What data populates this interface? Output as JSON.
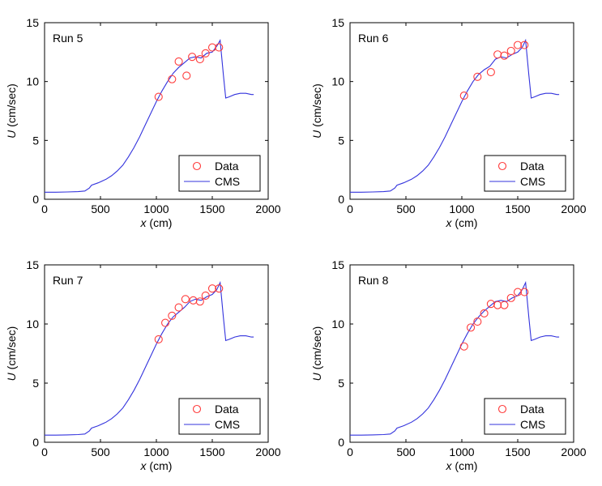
{
  "chart_data": {
    "type": "scatter",
    "xlabel": "x (cm)",
    "xlabel_var": "x",
    "xlabel_unit": "(cm)",
    "ylabel": "U (cm/sec)",
    "ylabel_var": "U",
    "ylabel_unit": "(cm/sec)",
    "xlim": [
      0,
      2000
    ],
    "ylim": [
      0,
      15
    ],
    "xticks": [
      0,
      500,
      1000,
      1500,
      2000
    ],
    "yticks": [
      0,
      5,
      10,
      15
    ],
    "legend": {
      "position": "bottom-right",
      "entries": [
        "Data",
        "CMS"
      ]
    },
    "panels": [
      {
        "title": "Run 5",
        "data": {
          "x": [
            1020,
            1140,
            1200,
            1270,
            1320,
            1390,
            1440,
            1500,
            1560
          ],
          "y": [
            8.7,
            10.2,
            11.7,
            10.5,
            12.1,
            11.9,
            12.4,
            12.9,
            12.9
          ]
        },
        "cms": {
          "x": [
            0,
            100,
            200,
            300,
            360,
            400,
            420,
            480,
            550,
            600,
            650,
            700,
            750,
            800,
            850,
            900,
            950,
            1000,
            1050,
            1100,
            1150,
            1200,
            1250,
            1300,
            1350,
            1400,
            1450,
            1500,
            1540,
            1570,
            1600,
            1620,
            1650,
            1700,
            1750,
            1800,
            1850,
            1870
          ],
          "y": [
            0.6,
            0.6,
            0.62,
            0.65,
            0.7,
            0.95,
            1.2,
            1.4,
            1.7,
            2.0,
            2.4,
            2.9,
            3.6,
            4.4,
            5.3,
            6.3,
            7.3,
            8.3,
            9.2,
            10.0,
            10.7,
            11.2,
            11.6,
            12.0,
            12.1,
            12.0,
            12.4,
            12.5,
            13.0,
            13.5,
            10.5,
            8.6,
            8.7,
            8.9,
            9.0,
            9.0,
            8.9,
            8.9
          ]
        }
      },
      {
        "title": "Run 6",
        "data": {
          "x": [
            1020,
            1140,
            1260,
            1320,
            1380,
            1440,
            1500,
            1560
          ],
          "y": [
            8.8,
            10.4,
            10.8,
            12.3,
            12.2,
            12.6,
            13.1,
            13.1
          ]
        },
        "cms": {
          "x": [
            0,
            100,
            200,
            300,
            360,
            400,
            420,
            480,
            550,
            600,
            650,
            700,
            750,
            800,
            850,
            900,
            950,
            1000,
            1050,
            1100,
            1150,
            1200,
            1250,
            1300,
            1350,
            1400,
            1450,
            1500,
            1540,
            1570,
            1600,
            1620,
            1650,
            1700,
            1750,
            1800,
            1850,
            1870
          ],
          "y": [
            0.6,
            0.6,
            0.62,
            0.65,
            0.7,
            0.95,
            1.2,
            1.4,
            1.7,
            2.0,
            2.4,
            2.9,
            3.6,
            4.4,
            5.3,
            6.3,
            7.3,
            8.3,
            9.2,
            10.0,
            10.6,
            11.0,
            11.3,
            11.9,
            12.1,
            12.0,
            12.3,
            12.5,
            12.9,
            13.5,
            10.5,
            8.6,
            8.7,
            8.9,
            9.0,
            9.0,
            8.9,
            8.9
          ]
        }
      },
      {
        "title": "Run 7",
        "data": {
          "x": [
            1020,
            1080,
            1140,
            1200,
            1260,
            1330,
            1390,
            1440,
            1500,
            1560
          ],
          "y": [
            8.7,
            10.1,
            10.7,
            11.4,
            12.1,
            12.0,
            11.9,
            12.4,
            13.0,
            13.0
          ]
        },
        "cms": {
          "x": [
            0,
            100,
            200,
            300,
            360,
            400,
            420,
            480,
            550,
            600,
            650,
            700,
            750,
            800,
            850,
            900,
            950,
            1000,
            1050,
            1100,
            1150,
            1200,
            1250,
            1300,
            1350,
            1400,
            1450,
            1500,
            1540,
            1570,
            1600,
            1620,
            1650,
            1700,
            1750,
            1800,
            1850,
            1870
          ],
          "y": [
            0.6,
            0.6,
            0.62,
            0.65,
            0.7,
            0.95,
            1.2,
            1.4,
            1.7,
            2.0,
            2.4,
            2.9,
            3.6,
            4.4,
            5.3,
            6.3,
            7.3,
            8.3,
            9.2,
            10.0,
            10.6,
            11.0,
            11.4,
            11.9,
            12.1,
            12.0,
            12.3,
            12.5,
            12.9,
            13.5,
            10.5,
            8.6,
            8.7,
            8.9,
            9.0,
            9.0,
            8.9,
            8.9
          ]
        }
      },
      {
        "title": "Run 8",
        "data": {
          "x": [
            1020,
            1080,
            1140,
            1200,
            1260,
            1320,
            1380,
            1440,
            1500,
            1560
          ],
          "y": [
            8.1,
            9.7,
            10.2,
            10.9,
            11.7,
            11.6,
            11.6,
            12.2,
            12.7,
            12.7
          ]
        },
        "cms": {
          "x": [
            0,
            100,
            200,
            300,
            360,
            400,
            420,
            480,
            550,
            600,
            650,
            700,
            750,
            800,
            850,
            900,
            950,
            1000,
            1050,
            1100,
            1150,
            1200,
            1250,
            1300,
            1350,
            1400,
            1450,
            1500,
            1540,
            1570,
            1600,
            1620,
            1650,
            1700,
            1750,
            1800,
            1850,
            1870
          ],
          "y": [
            0.6,
            0.6,
            0.62,
            0.65,
            0.7,
            0.95,
            1.2,
            1.4,
            1.7,
            2.0,
            2.4,
            2.9,
            3.6,
            4.4,
            5.3,
            6.3,
            7.3,
            8.3,
            9.2,
            10.0,
            10.6,
            11.1,
            11.5,
            11.9,
            12.0,
            11.9,
            12.2,
            12.4,
            12.9,
            13.5,
            10.5,
            8.6,
            8.7,
            8.9,
            9.0,
            9.0,
            8.9,
            8.9
          ]
        }
      }
    ]
  },
  "colors": {
    "data_marker": "#ff3b3b",
    "cms_line": "#3333dd",
    "axis": "#000000",
    "legend_border": "#000000"
  }
}
